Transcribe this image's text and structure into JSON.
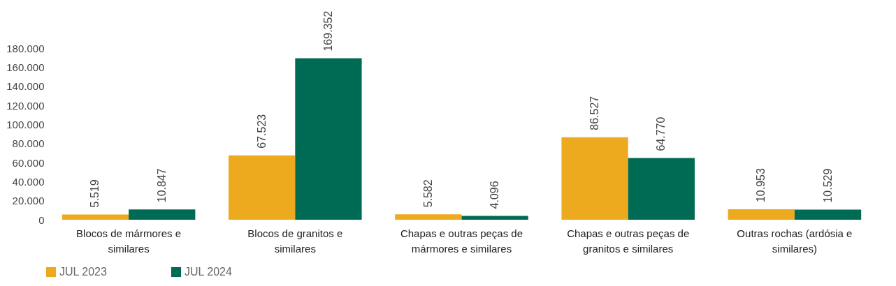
{
  "chart_data": {
    "type": "bar",
    "categories": [
      "Blocos de mármores e similares",
      "Blocos de granitos e similares",
      "Chapas e outras peças de mármores e similares",
      "Chapas e outras peças de granitos e similares",
      "Outras rochas (ardósia e similares)"
    ],
    "series": [
      {
        "name": "JUL 2023",
        "color": "#eeaa1e",
        "values": [
          5519,
          67523,
          5582,
          86527,
          10953
        ],
        "value_labels": [
          "5.519",
          "67.523",
          "5.582",
          "86.527",
          "10.953"
        ]
      },
      {
        "name": "JUL 2024",
        "color": "#006b54",
        "values": [
          10847,
          169352,
          4096,
          64770,
          10529
        ],
        "value_labels": [
          "10.847",
          "169.352",
          "4.096",
          "64.770",
          "10.529"
        ]
      }
    ],
    "ylim": [
      0,
      180000
    ],
    "yticks": [
      0,
      {
        "value": 20000,
        "label": "20.000"
      },
      {
        "value": 40000,
        "label": "40.000"
      },
      {
        "value": 60000,
        "label": "60.000"
      },
      {
        "value": 80000,
        "label": "80.000"
      },
      {
        "value": 100000,
        "label": "100.000"
      },
      {
        "value": 120000,
        "label": "120.000"
      },
      {
        "value": 140000,
        "label": "140.000"
      },
      {
        "value": 160000,
        "label": "160.000"
      },
      {
        "value": 180000,
        "label": "180.000"
      }
    ],
    "grid": false,
    "legend": "bottom"
  }
}
